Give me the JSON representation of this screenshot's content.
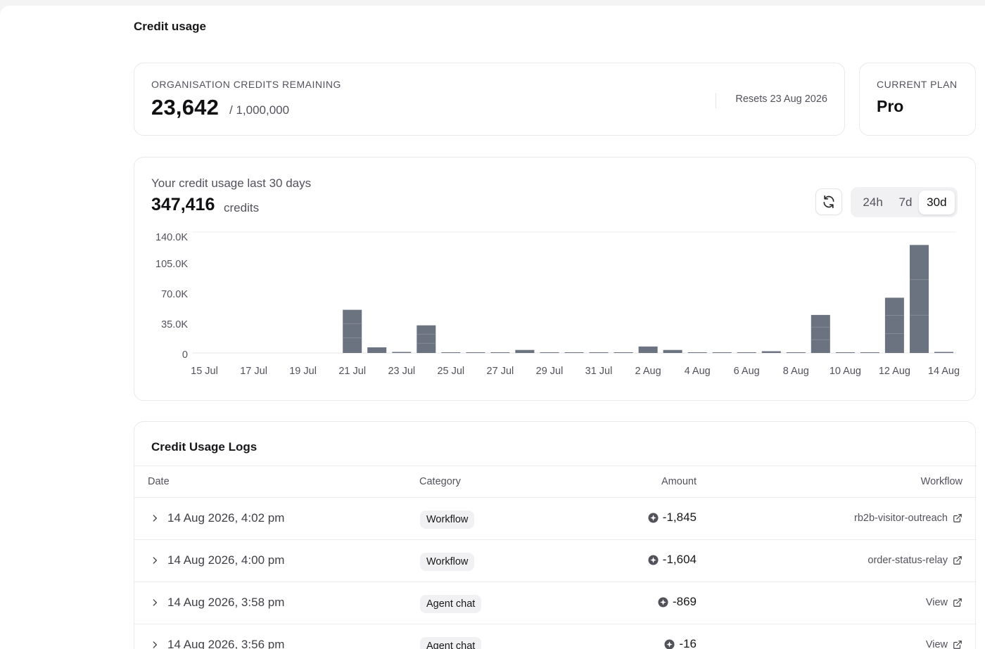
{
  "page": {
    "title": "Credit usage"
  },
  "credits": {
    "label": "ORGANISATION CREDITS REMAINING",
    "remaining": "23,642",
    "total": "/ 1,000,000",
    "resets": "Resets 23 Aug 2026"
  },
  "plan": {
    "label": "CURRENT PLAN",
    "name": "Pro"
  },
  "usage": {
    "title": "Your credit usage last 30 days",
    "total": "347,416",
    "unit": "credits",
    "ranges": [
      {
        "label": "24h",
        "active": false
      },
      {
        "label": "7d",
        "active": false
      },
      {
        "label": "30d",
        "active": true
      }
    ],
    "icons": {
      "refresh": "refresh-icon"
    }
  },
  "chart_data": {
    "type": "bar",
    "y_ticks": [
      "140.0K",
      "105.0K",
      "70.0K",
      "35.0K",
      "0"
    ],
    "ylim": [
      0,
      140000
    ],
    "x_tick_labels": [
      "15 Jul",
      "17 Jul",
      "19 Jul",
      "21 Jul",
      "23 Jul",
      "25 Jul",
      "27 Jul",
      "29 Jul",
      "31 Jul",
      "2 Aug",
      "4 Aug",
      "6 Aug",
      "8 Aug",
      "10 Aug",
      "12 Aug",
      "14 Aug"
    ],
    "categories": [
      "15 Jul",
      "16 Jul",
      "17 Jul",
      "18 Jul",
      "19 Jul",
      "20 Jul",
      "21 Jul",
      "22 Jul",
      "23 Jul",
      "24 Jul",
      "25 Jul",
      "26 Jul",
      "27 Jul",
      "28 Jul",
      "29 Jul",
      "30 Jul",
      "31 Jul",
      "1 Aug",
      "2 Aug",
      "3 Aug",
      "4 Aug",
      "5 Aug",
      "6 Aug",
      "7 Aug",
      "8 Aug",
      "9 Aug",
      "10 Aug",
      "11 Aug",
      "12 Aug",
      "13 Aug",
      "14 Aug"
    ],
    "values": [
      0,
      0,
      0,
      0,
      0,
      0,
      50000,
      6500,
      1200,
      32000,
      600,
      600,
      600,
      3500,
      600,
      600,
      600,
      600,
      7500,
      3500,
      600,
      600,
      600,
      2000,
      600,
      44000,
      600,
      600,
      64000,
      125000,
      1200
    ],
    "bar_color": "#6b7280",
    "grid": false
  },
  "logs": {
    "title": "Credit Usage Logs",
    "columns": {
      "date": "Date",
      "category": "Category",
      "amount": "Amount",
      "workflow": "Workflow"
    },
    "rows": [
      {
        "date": "14 Aug 2026, 4:02 pm",
        "category": "Workflow",
        "amount": "-1,845",
        "workflow": "rb2b-visitor-outreach"
      },
      {
        "date": "14 Aug 2026, 4:00 pm",
        "category": "Workflow",
        "amount": "-1,604",
        "workflow": "order-status-relay"
      },
      {
        "date": "14 Aug 2026, 3:58 pm",
        "category": "Agent chat",
        "amount": "-869",
        "workflow": "View"
      },
      {
        "date": "14 Aug 2026, 3:56 pm",
        "category": "Agent chat",
        "amount": "-16",
        "workflow": "View"
      }
    ]
  }
}
